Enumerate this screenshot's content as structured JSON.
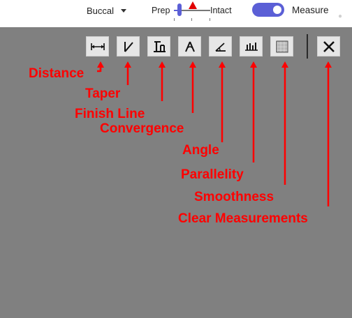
{
  "topbar": {
    "view_select": {
      "value": "Buccal"
    },
    "slider": {
      "left_label": "Prep",
      "right_label": "Intact",
      "position": 0.15
    },
    "toggle": {
      "label": "Measure",
      "on": true
    },
    "accent_color": "#5b5fd6"
  },
  "toolbar": {
    "tools": [
      {
        "id": "distance",
        "icon": "distance-icon"
      },
      {
        "id": "taper",
        "icon": "taper-icon"
      },
      {
        "id": "finish-line",
        "icon": "finish-line-icon"
      },
      {
        "id": "convergence",
        "icon": "convergence-icon"
      },
      {
        "id": "angle",
        "icon": "angle-icon"
      },
      {
        "id": "parallelity",
        "icon": "parallelity-icon"
      },
      {
        "id": "smoothness",
        "icon": "smoothness-icon"
      },
      {
        "id": "clear-measurements",
        "icon": "close-icon"
      }
    ]
  },
  "annotations": {
    "color": "#ff0000",
    "labels": {
      "distance": "Distance",
      "taper": "Taper",
      "finish_line": "Finish Line",
      "convergence": "Convergence",
      "angle": "Angle",
      "parallelity": "Parallelity",
      "smoothness": "Smoothness",
      "clear": "Clear Measurements"
    }
  }
}
